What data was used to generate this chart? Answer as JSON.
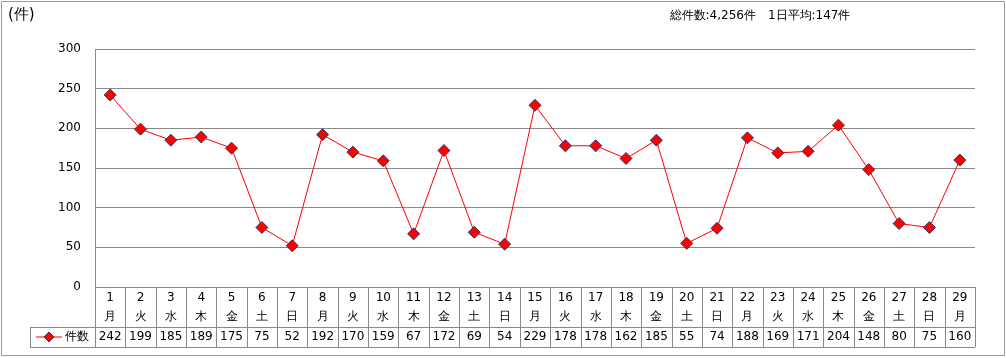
{
  "chart_data": {
    "type": "line",
    "ylabel": "(件)",
    "annotations": [
      "総件数:4,256件　1日平均:147件"
    ],
    "categories": [
      "1\n月",
      "2\n火",
      "3\n水",
      "4\n木",
      "5\n金",
      "6\n土",
      "7\n日",
      "8\n月",
      "9\n火",
      "10\n水",
      "11\n木",
      "12\n金",
      "13\n土",
      "14\n日",
      "15\n月",
      "16\n火",
      "17\n水",
      "18\n木",
      "19\n金",
      "20\n土",
      "21\n日",
      "22\n月",
      "23\n火",
      "24\n水",
      "25\n木",
      "26\n金",
      "27\n土",
      "28\n日",
      "29\n月"
    ],
    "series": [
      {
        "name": "件数",
        "color": "#ff0000",
        "values": [
          242,
          199,
          185,
          189,
          175,
          75,
          52,
          192,
          170,
          159,
          67,
          172,
          69,
          54,
          229,
          178,
          178,
          162,
          185,
          55,
          74,
          188,
          169,
          171,
          204,
          148,
          80,
          75,
          160
        ]
      }
    ],
    "ylim": [
      0,
      300
    ],
    "yticks": [
      0,
      50,
      100,
      150,
      200,
      250,
      300
    ],
    "grid": "y",
    "legend": "bottom left",
    "marker": "diamond",
    "line_style": "solid",
    "data_labels": true
  }
}
